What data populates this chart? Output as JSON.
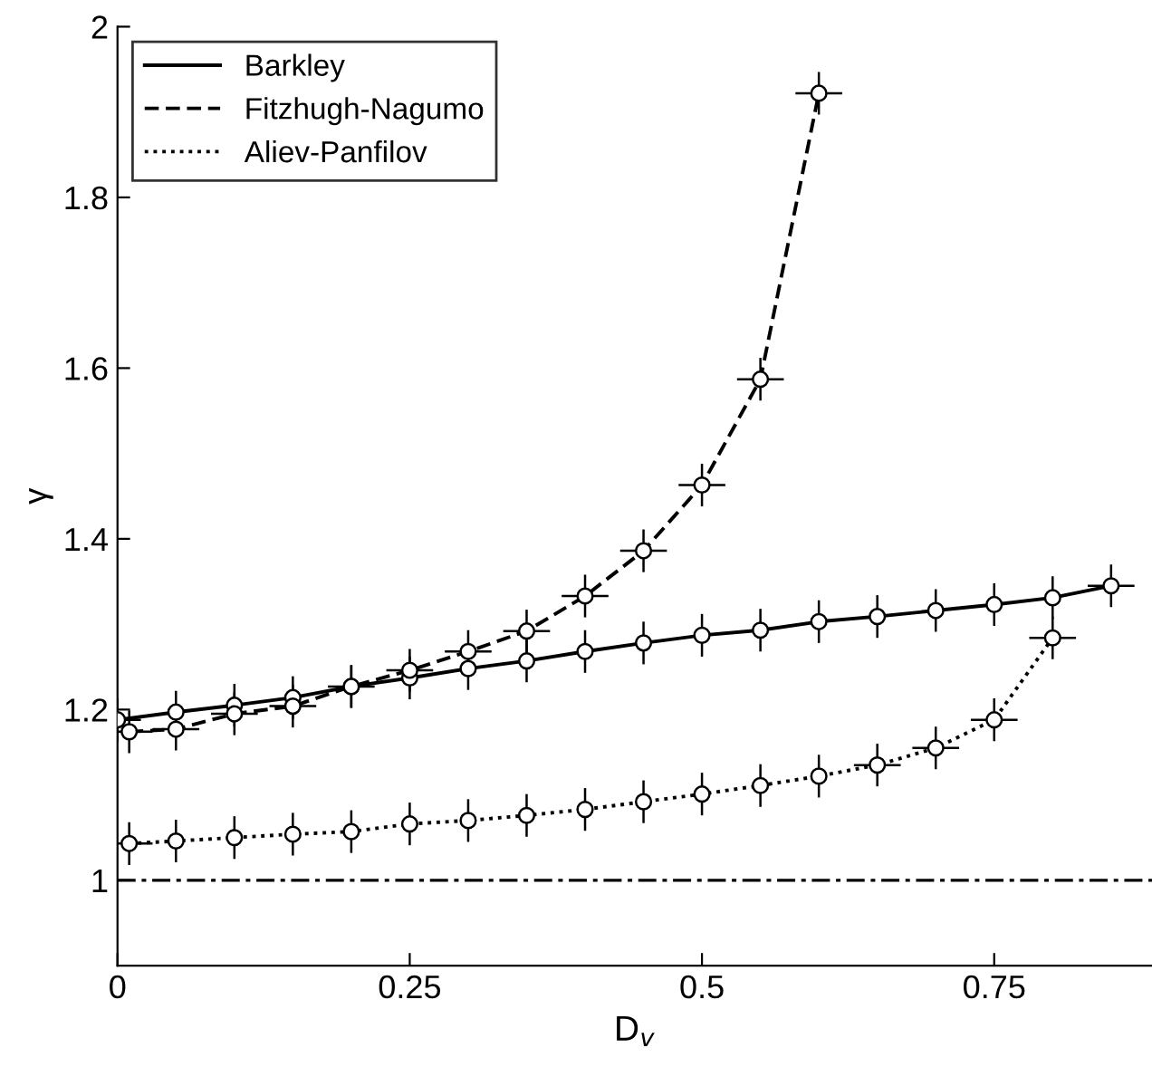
{
  "chart_data": {
    "type": "line",
    "xlabel": "D$_{v}$",
    "ylabel": "γ",
    "xlim": [
      0,
      0.885
    ],
    "ylim": [
      0.9,
      2
    ],
    "xticks": [
      0,
      0.25,
      0.5,
      0.75
    ],
    "yticks": [
      1,
      1.2,
      1.4,
      1.6,
      1.8,
      2
    ],
    "legend": "top left",
    "grid": false,
    "series": [
      {
        "name": "Barkley",
        "color": "#000000",
        "line_style": "solid",
        "marker": "circle",
        "x": [
          0,
          0.05,
          0.1,
          0.15,
          0.2,
          0.25,
          0.3,
          0.35,
          0.4,
          0.45,
          0.5,
          0.55,
          0.6,
          0.65,
          0.7,
          0.75,
          0.8,
          0.85
        ],
        "values": [
          1.188,
          1.197,
          1.205,
          1.214,
          1.227,
          1.237,
          1.248,
          1.257,
          1.268,
          1.278,
          1.287,
          1.293,
          1.303,
          1.309,
          1.316,
          1.323,
          1.331,
          1.345
        ],
        "errors": [
          0.025,
          0.025,
          0.025,
          0.025,
          0.025,
          0.025,
          0.025,
          0.025,
          0.025,
          0.025,
          0.025,
          0.025,
          0.025,
          0.025,
          0.025,
          0.025,
          0.025,
          0.025
        ],
        "xerrors": [
          0.02,
          null,
          null,
          null,
          null,
          null,
          null,
          null,
          null,
          null,
          null,
          null,
          null,
          null,
          null,
          null,
          null,
          0.02
        ]
      },
      {
        "name": "Fitzhugh-Nagumo",
        "color": "#000000",
        "line_style": "dashed",
        "marker": "circle",
        "x": [
          0.01,
          0.05,
          0.1,
          0.15,
          0.2,
          0.25,
          0.3,
          0.35,
          0.4,
          0.45,
          0.5,
          0.55,
          0.6
        ],
        "values": [
          1.174,
          1.177,
          1.195,
          1.204,
          1.227,
          1.246,
          1.268,
          1.292,
          1.333,
          1.386,
          1.463,
          1.587,
          1.922
        ],
        "errors": [
          0.025,
          0.025,
          0.025,
          0.025,
          0.025,
          0.025,
          0.025,
          0.025,
          0.025,
          0.025,
          0.025,
          0.025,
          0.025
        ],
        "xerrors": [
          0.02,
          0.02,
          0.02,
          0.02,
          0.02,
          0.02,
          0.02,
          0.02,
          0.02,
          0.02,
          0.02,
          0.02,
          0.02
        ]
      },
      {
        "name": "Aliev-Panfilov",
        "color": "#000000",
        "line_style": "dotted",
        "marker": "circle",
        "x": [
          0.01,
          0.05,
          0.1,
          0.15,
          0.2,
          0.25,
          0.3,
          0.35,
          0.4,
          0.45,
          0.5,
          0.55,
          0.6,
          0.65,
          0.7,
          0.75,
          0.8
        ],
        "values": [
          1.043,
          1.046,
          1.05,
          1.054,
          1.057,
          1.066,
          1.07,
          1.076,
          1.083,
          1.092,
          1.101,
          1.111,
          1.122,
          1.135,
          1.155,
          1.188,
          1.284
        ],
        "errors": [
          0.025,
          0.025,
          0.025,
          0.025,
          0.025,
          0.025,
          0.025,
          0.025,
          0.025,
          0.025,
          0.025,
          0.025,
          0.025,
          0.025,
          0.025,
          0.025,
          0.025
        ],
        "xerrors": [
          0.02,
          null,
          null,
          null,
          null,
          null,
          null,
          null,
          null,
          null,
          null,
          null,
          null,
          0.02,
          0.02,
          0.02,
          0.02
        ]
      }
    ],
    "ref_lines": [
      {
        "axis": "y",
        "value": 1,
        "color": "#000000",
        "line_style": "dashdot"
      }
    ]
  }
}
